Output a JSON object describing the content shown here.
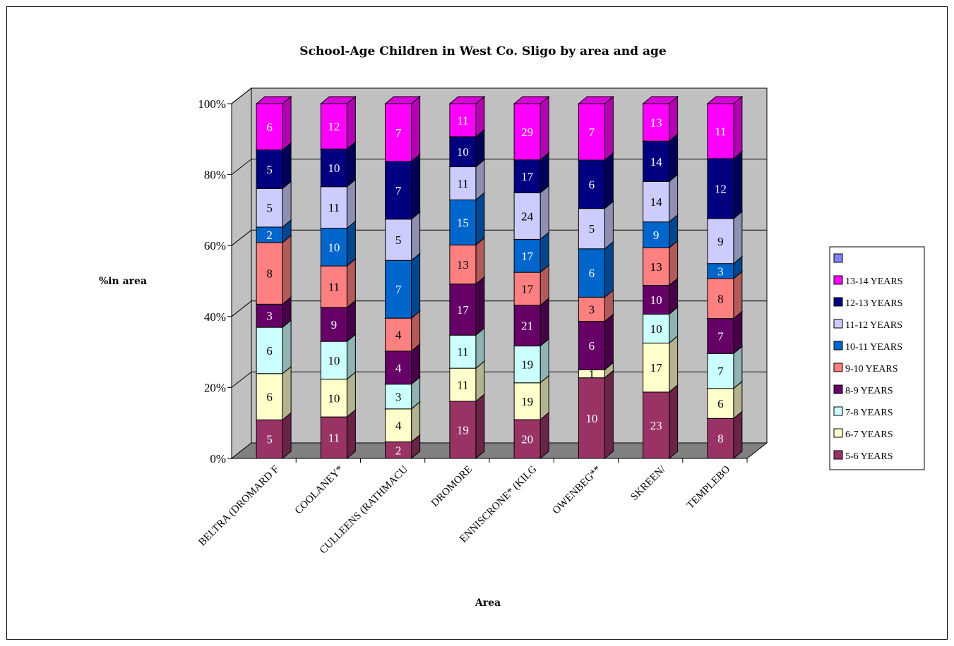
{
  "chart_data": {
    "type": "bar",
    "stacked": "percent",
    "three_d": true,
    "title": "School-Age Children in West Co. Sligo by area and age",
    "xlabel": "Area",
    "ylabel": "%in area",
    "ylim": [
      0,
      100
    ],
    "yticks": [
      "0%",
      "20%",
      "40%",
      "60%",
      "80%",
      "100%"
    ],
    "grid": true,
    "legend_position": "right",
    "categories": [
      "BELTRA (DROMARD F",
      "COOLANEY*",
      "CULLEENS (RATHMACU",
      "DROMORE",
      "ENNISCRONE* (KILG",
      "OWENBEG**",
      "SKREEN/",
      "TEMPLEBO"
    ],
    "series": [
      {
        "name": "5-6 YEARS",
        "color": "#993366",
        "values": [
          5,
          11,
          2,
          19,
          20,
          10,
          23,
          8
        ]
      },
      {
        "name": "6-7 YEARS",
        "color": "#ffffcc",
        "values": [
          6,
          10,
          4,
          11,
          19,
          1,
          17,
          6
        ]
      },
      {
        "name": "7-8 YEARS",
        "color": "#ccffff",
        "values": [
          6,
          10,
          3,
          11,
          19,
          0,
          10,
          7
        ]
      },
      {
        "name": "8-9 YEARS",
        "color": "#660066",
        "values": [
          3,
          9,
          4,
          17,
          21,
          6,
          10,
          7
        ]
      },
      {
        "name": "9-10 YEARS",
        "color": "#ff8080",
        "values": [
          8,
          11,
          4,
          13,
          17,
          3,
          13,
          8
        ]
      },
      {
        "name": "10-11 YEARS",
        "color": "#0066cc",
        "values": [
          2,
          10,
          7,
          15,
          17,
          6,
          9,
          3
        ]
      },
      {
        "name": "11-12 YEARS",
        "color": "#ccccff",
        "values": [
          5,
          11,
          5,
          11,
          24,
          5,
          14,
          9
        ]
      },
      {
        "name": "12-13 YEARS",
        "color": "#000080",
        "values": [
          5,
          10,
          7,
          10,
          17,
          6,
          14,
          12
        ]
      },
      {
        "name": "13-14 YEARS",
        "color": "#ff00ff",
        "values": [
          6,
          12,
          7,
          11,
          29,
          7,
          13,
          11
        ]
      },
      {
        "name": "",
        "color": "#8080ff",
        "values": [
          0,
          0,
          0,
          0,
          0,
          0,
          0,
          0
        ]
      }
    ]
  }
}
